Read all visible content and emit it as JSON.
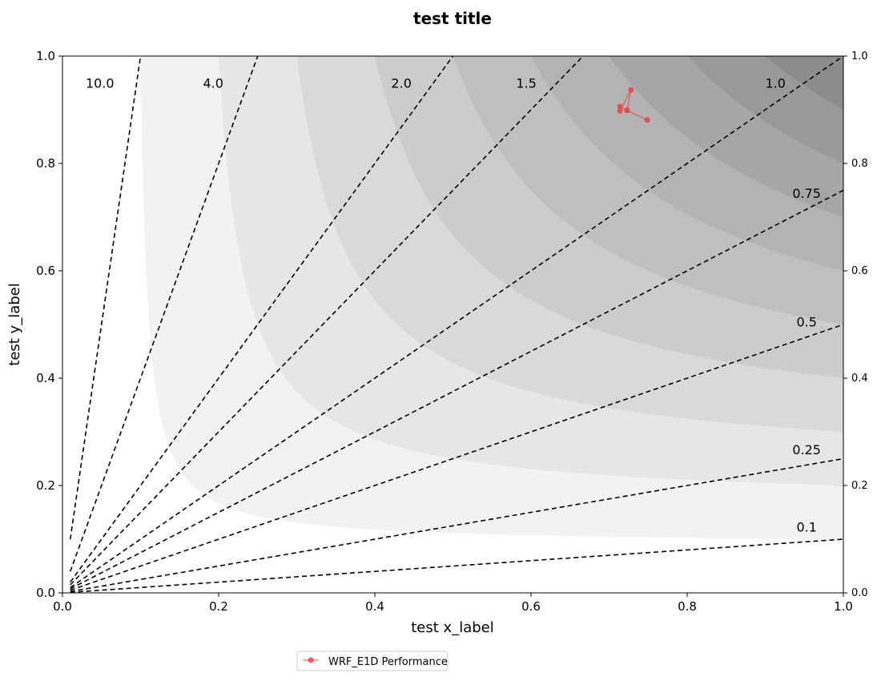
{
  "chart_data": {
    "type": "scatter",
    "title": "test title",
    "xlabel": "test x_label",
    "ylabel": "test y_label",
    "xlim": [
      0,
      1
    ],
    "ylim": [
      0,
      1
    ],
    "grid": false,
    "legend_placement": "below-left",
    "x_ticks": [
      "0.0",
      "0.2",
      "0.4",
      "0.6",
      "0.8",
      "1.0"
    ],
    "y_ticks": [
      "0.0",
      "0.2",
      "0.4",
      "0.6",
      "0.8",
      "1.0"
    ],
    "y_ticks_right": [
      "0.0",
      "0.2",
      "0.4",
      "0.6",
      "0.8",
      "1.0"
    ],
    "contours": {
      "levels": [
        0.1,
        0.2,
        0.3,
        0.4,
        0.5,
        0.6,
        0.7,
        0.8,
        0.9
      ],
      "colors": [
        "#f2f2f2",
        "#e6e6e6",
        "#d9d9d9",
        "#cccccc",
        "#bfbfbf",
        "#b3b3b3",
        "#a6a6a6",
        "#999999",
        "#8c8c8c"
      ]
    },
    "ratio_lines": {
      "slopes": [
        10.0,
        4.0,
        2.0,
        1.5,
        1.0,
        0.75,
        0.5,
        0.25,
        0.1
      ],
      "labels": [
        "10.0",
        "4.0",
        "2.0",
        "1.5",
        "1.0",
        "0.75",
        "0.5",
        "0.25",
        "0.1"
      ],
      "color": "#000000"
    },
    "series": [
      {
        "name": "WRF_E1D Performance",
        "color": "#e8494b",
        "points": [
          {
            "x": 0.749,
            "y": 0.881
          },
          {
            "x": 0.723,
            "y": 0.899
          },
          {
            "x": 0.728,
            "y": 0.937
          },
          {
            "x": 0.714,
            "y": 0.898
          },
          {
            "x": 0.714,
            "y": 0.906
          },
          {
            "x": 0.723,
            "y": 0.899
          }
        ]
      }
    ]
  }
}
